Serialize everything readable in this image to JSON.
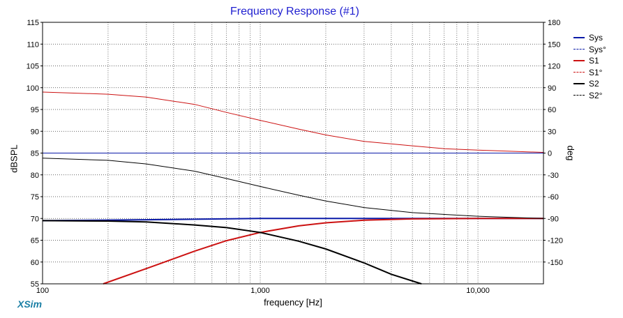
{
  "chart_data": {
    "type": "line",
    "title": "Frequency Response (#1)",
    "xlabel": "frequency [Hz]",
    "ylabel": "dBSPL",
    "y2label": "deg",
    "xscale": "log",
    "xlim": [
      100,
      20000
    ],
    "ylim": [
      55,
      115
    ],
    "y2lim": [
      -180,
      180
    ],
    "x_ticks": [
      100,
      1000,
      10000
    ],
    "x_tick_labels": [
      "100",
      "1,000",
      "10,000"
    ],
    "y_ticks": [
      55,
      60,
      65,
      70,
      75,
      80,
      85,
      90,
      95,
      100,
      105,
      110,
      115
    ],
    "y2_ticks": [
      -150,
      -120,
      -90,
      -60,
      -30,
      0,
      30,
      60,
      90,
      120,
      150,
      180
    ],
    "grid": true,
    "legend_position": "right",
    "series": [
      {
        "name": "Sys",
        "axis": "left",
        "color": "#0a1aa8",
        "dash": "solid",
        "points": [
          [
            100,
            69.5
          ],
          [
            300,
            69.7
          ],
          [
            1000,
            70.0
          ],
          [
            3000,
            70.0
          ],
          [
            10000,
            70.0
          ],
          [
            20000,
            70.0
          ]
        ]
      },
      {
        "name": "Sys°",
        "axis": "right",
        "color": "#0a1aa8",
        "dash": "dashed",
        "points": [
          [
            100,
            0
          ],
          [
            1000,
            0
          ],
          [
            10000,
            0
          ],
          [
            20000,
            0
          ]
        ]
      },
      {
        "name": "S1",
        "axis": "left",
        "color": "#cc1111",
        "dash": "solid",
        "points": [
          [
            190,
            55.0
          ],
          [
            300,
            58.5
          ],
          [
            500,
            62.5
          ],
          [
            700,
            64.9
          ],
          [
            1000,
            66.8
          ],
          [
            1500,
            68.3
          ],
          [
            2000,
            69.0
          ],
          [
            3000,
            69.6
          ],
          [
            5000,
            69.9
          ],
          [
            10000,
            70.0
          ],
          [
            20000,
            70.0
          ]
        ]
      },
      {
        "name": "S1°",
        "axis": "right",
        "color": "#cc1111",
        "dash": "dashed",
        "points": [
          [
            100,
            84
          ],
          [
            200,
            81
          ],
          [
            300,
            77
          ],
          [
            500,
            67
          ],
          [
            700,
            56
          ],
          [
            1000,
            45
          ],
          [
            1500,
            33
          ],
          [
            2000,
            25
          ],
          [
            3000,
            16
          ],
          [
            5000,
            10
          ],
          [
            7000,
            6
          ],
          [
            10000,
            4
          ],
          [
            20000,
            1
          ]
        ]
      },
      {
        "name": "S2",
        "axis": "left",
        "color": "#000000",
        "dash": "solid",
        "points": [
          [
            100,
            69.5
          ],
          [
            200,
            69.4
          ],
          [
            300,
            69.2
          ],
          [
            500,
            68.5
          ],
          [
            700,
            67.9
          ],
          [
            1000,
            66.8
          ],
          [
            1500,
            64.8
          ],
          [
            2000,
            63.0
          ],
          [
            3000,
            59.8
          ],
          [
            4000,
            57.2
          ],
          [
            5500,
            55.0
          ]
        ]
      },
      {
        "name": "S2°",
        "axis": "right",
        "color": "#000000",
        "dash": "dashed",
        "points": [
          [
            100,
            -7
          ],
          [
            200,
            -10
          ],
          [
            300,
            -15
          ],
          [
            500,
            -25
          ],
          [
            700,
            -35
          ],
          [
            1000,
            -46
          ],
          [
            1500,
            -58
          ],
          [
            2000,
            -66
          ],
          [
            3000,
            -75
          ],
          [
            5000,
            -82
          ],
          [
            10000,
            -87
          ],
          [
            20000,
            -90
          ]
        ]
      }
    ]
  },
  "brand": "XSim"
}
